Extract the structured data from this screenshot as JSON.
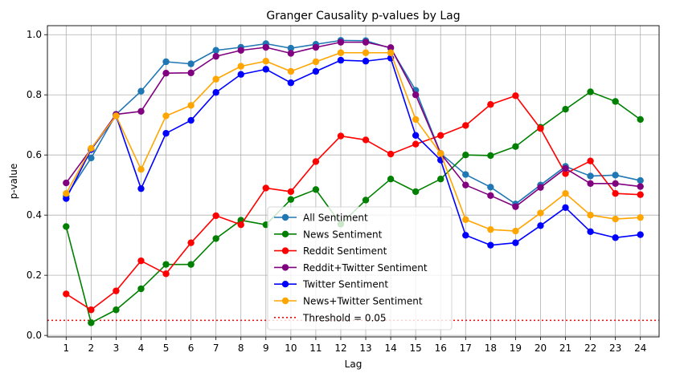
{
  "chart_data": {
    "type": "line",
    "title": "Granger Causality p-values by Lag",
    "xlabel": "Lag",
    "ylabel": "p-value",
    "x": [
      1,
      2,
      3,
      4,
      5,
      6,
      7,
      8,
      9,
      10,
      11,
      12,
      13,
      14,
      15,
      16,
      17,
      18,
      19,
      20,
      21,
      22,
      23,
      24
    ],
    "xlim": [
      0.25,
      24.75
    ],
    "ylim": [
      -0.005,
      1.03
    ],
    "yticks": [
      0.0,
      0.2,
      0.4,
      0.6,
      0.8,
      1.0
    ],
    "ytick_labels": [
      "0.0",
      "0.2",
      "0.4",
      "0.6",
      "0.8",
      "1.0"
    ],
    "grid": true,
    "legend_position": "lower-center",
    "series": [
      {
        "name": "All Sentiment",
        "color": "#1f77b4",
        "values": [
          0.463,
          0.59,
          0.735,
          0.812,
          0.91,
          0.903,
          0.948,
          0.958,
          0.97,
          0.955,
          0.968,
          0.981,
          0.98,
          0.955,
          0.815,
          0.605,
          0.535,
          0.493,
          0.437,
          0.5,
          0.562,
          0.53,
          0.533,
          0.515
        ]
      },
      {
        "name": "News Sentiment",
        "color": "#008000",
        "values": [
          0.362,
          0.042,
          0.085,
          0.155,
          0.236,
          0.236,
          0.322,
          0.383,
          0.368,
          0.452,
          0.485,
          0.37,
          0.45,
          0.52,
          0.478,
          0.52,
          0.6,
          0.598,
          0.628,
          0.692,
          0.752,
          0.81,
          0.778,
          0.718
        ]
      },
      {
        "name": "Reddit Sentiment",
        "color": "#ff0000",
        "values": [
          0.138,
          0.085,
          0.148,
          0.248,
          0.205,
          0.308,
          0.398,
          0.368,
          0.49,
          0.478,
          0.578,
          0.663,
          0.65,
          0.603,
          0.636,
          0.665,
          0.698,
          0.768,
          0.797,
          0.688,
          0.538,
          0.58,
          0.472,
          0.468
        ]
      },
      {
        "name": "Reddit+Twitter Sentiment",
        "color": "#800080",
        "values": [
          0.507,
          0.62,
          0.735,
          0.745,
          0.872,
          0.873,
          0.928,
          0.948,
          0.958,
          0.938,
          0.958,
          0.975,
          0.975,
          0.957,
          0.8,
          0.605,
          0.5,
          0.465,
          0.428,
          0.492,
          0.555,
          0.505,
          0.505,
          0.495
        ]
      },
      {
        "name": "Twitter Sentiment",
        "color": "#0000ff",
        "values": [
          0.455,
          0.618,
          0.73,
          0.488,
          0.672,
          0.715,
          0.808,
          0.868,
          0.885,
          0.84,
          0.878,
          0.915,
          0.912,
          0.922,
          0.665,
          0.583,
          0.333,
          0.3,
          0.308,
          0.365,
          0.425,
          0.345,
          0.325,
          0.335
        ]
      },
      {
        "name": "News+Twitter Sentiment",
        "color": "#ffa500",
        "values": [
          0.472,
          0.622,
          0.73,
          0.552,
          0.73,
          0.765,
          0.852,
          0.895,
          0.912,
          0.878,
          0.91,
          0.94,
          0.94,
          0.94,
          0.718,
          0.605,
          0.385,
          0.352,
          0.347,
          0.407,
          0.472,
          0.4,
          0.387,
          0.392
        ]
      }
    ],
    "threshold": {
      "value": 0.05,
      "label": "Threshold = 0.05",
      "color": "#ff0000"
    }
  }
}
